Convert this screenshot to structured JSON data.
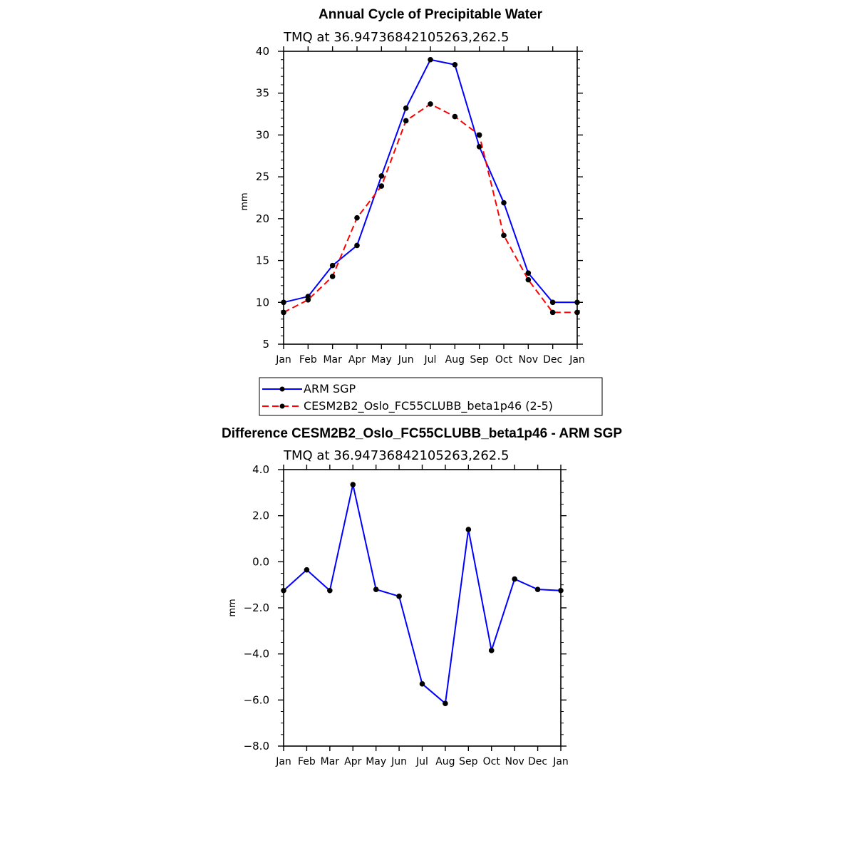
{
  "chart_data": [
    {
      "type": "line",
      "title": "Annual Cycle of Precipitable Water",
      "subtitle": "TMQ at 36.94736842105263,262.5",
      "ylabel": "mm",
      "xlabel": "",
      "categories": [
        "Jan",
        "Feb",
        "Mar",
        "Apr",
        "May",
        "Jun",
        "Jul",
        "Aug",
        "Sep",
        "Oct",
        "Nov",
        "Dec",
        "Jan"
      ],
      "ylim": [
        5,
        40
      ],
      "yticks": [
        "5",
        "10",
        "15",
        "20",
        "25",
        "30",
        "35",
        "40"
      ],
      "grid": false,
      "legend_position": "below",
      "series": [
        {
          "name": "ARM SGP",
          "color": "#0000ff",
          "dash": "solid",
          "values": [
            10.0,
            10.7,
            14.4,
            16.8,
            25.1,
            33.2,
            39.0,
            38.4,
            28.6,
            21.9,
            13.5,
            10.0,
            10.0
          ]
        },
        {
          "name": "CESM2B2_Oslo_FC55CLUBB_beta1p46 (2-5)",
          "color": "#ff0000",
          "dash": "dashed",
          "values": [
            8.8,
            10.3,
            13.1,
            20.1,
            23.9,
            31.7,
            33.7,
            32.2,
            30.0,
            18.0,
            12.7,
            8.8,
            8.8
          ]
        }
      ]
    },
    {
      "type": "line",
      "title": "Difference CESM2B2_Oslo_FC55CLUBB_beta1p46 - ARM SGP",
      "subtitle": "TMQ at 36.94736842105263,262.5",
      "ylabel": "mm",
      "xlabel": "",
      "categories": [
        "Jan",
        "Feb",
        "Mar",
        "Apr",
        "May",
        "Jun",
        "Jul",
        "Aug",
        "Sep",
        "Oct",
        "Nov",
        "Dec",
        "Jan"
      ],
      "ylim": [
        -8,
        4
      ],
      "yticks": [
        "−8.0",
        "−6.0",
        "−4.0",
        "−2.0",
        "0.0",
        "2.0",
        "4.0"
      ],
      "grid": false,
      "series": [
        {
          "color": "#0000ff",
          "dash": "solid",
          "values": [
            -1.25,
            -0.35,
            -1.25,
            3.35,
            -1.2,
            -1.5,
            -5.3,
            -6.15,
            1.4,
            -3.85,
            -0.75,
            -1.2,
            -1.25
          ]
        }
      ]
    }
  ]
}
